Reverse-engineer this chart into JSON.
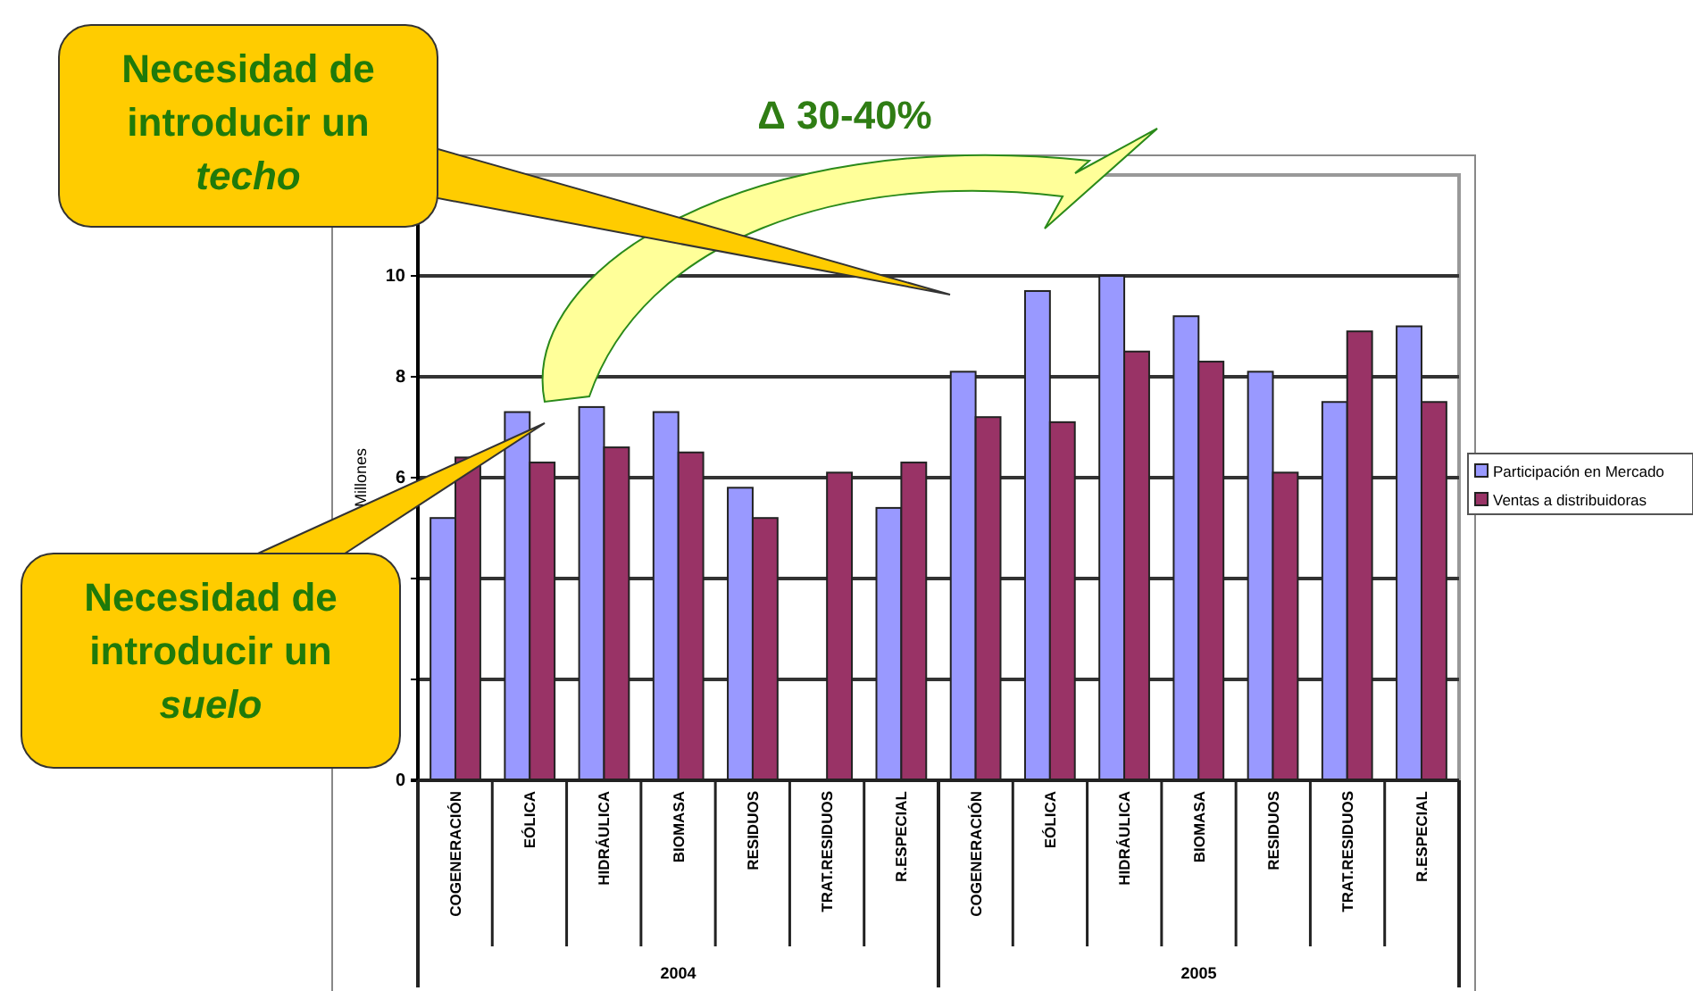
{
  "chart_data": {
    "type": "bar",
    "ylabel": "Millones",
    "categories": [
      "COGENERACIÓN",
      "EÓLICA",
      "HIDRÁULICA",
      "BIOMASA",
      "RESIDUOS",
      "TRAT.RESIDUOS",
      "R.ESPECIAL",
      "COGENERACIÓN",
      "EÓLICA",
      "HIDRÁULICA",
      "BIOMASA",
      "RESIDUOS",
      "TRAT.RESIDUOS",
      "R.ESPECIAL"
    ],
    "series": [
      {
        "name": "Participación en Mercado",
        "color": "#9999ff",
        "values": [
          5.2,
          7.3,
          7.4,
          7.3,
          5.8,
          null,
          5.4,
          8.1,
          9.7,
          10.0,
          9.2,
          8.1,
          7.5,
          9.0
        ]
      },
      {
        "name": "Ventas a distribuidoras",
        "color": "#993366",
        "values": [
          6.4,
          6.3,
          6.6,
          6.5,
          5.2,
          6.1,
          6.3,
          7.2,
          7.1,
          8.5,
          8.3,
          6.1,
          8.9,
          7.5
        ]
      }
    ],
    "ylim": [
      0,
      12
    ],
    "yticks": [
      0,
      {
        "value": 2,
        "label": null
      },
      {
        "value": 4,
        "label": null
      },
      6,
      8,
      10
    ],
    "grid": "y",
    "legend": "right",
    "annotations": [
      "2004",
      "2005",
      "Necesidad de\nintroducir un\ntecho",
      "Necesidad de\nintroducir un\nsuelo",
      "Δ 30-40%"
    ]
  }
}
